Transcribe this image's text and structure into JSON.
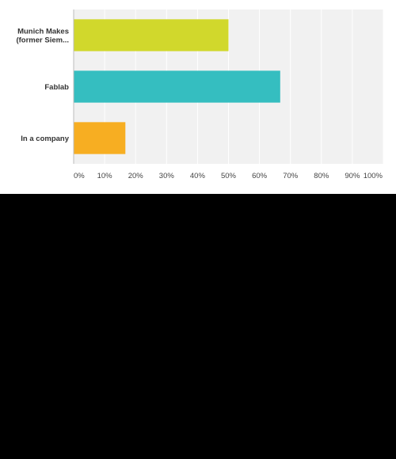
{
  "chart_data": {
    "type": "bar",
    "orientation": "horizontal",
    "categories": [
      [
        "Munich Makes",
        "(former Siem..."
      ],
      [
        "Fablab"
      ],
      [
        "In a company"
      ]
    ],
    "values": [
      50,
      66.7,
      16.7
    ],
    "colors": [
      "#d1d82c",
      "#35bec0",
      "#f7ae22"
    ],
    "xlim": [
      0,
      100
    ],
    "xticks": [
      "0%",
      "10%",
      "20%",
      "30%",
      "40%",
      "50%",
      "60%",
      "70%",
      "80%",
      "90%",
      "100%"
    ],
    "grid": true,
    "plot_background": "#f1f1f1",
    "gridline_color": "#ffffff",
    "title": "",
    "xlabel": "",
    "ylabel": ""
  }
}
